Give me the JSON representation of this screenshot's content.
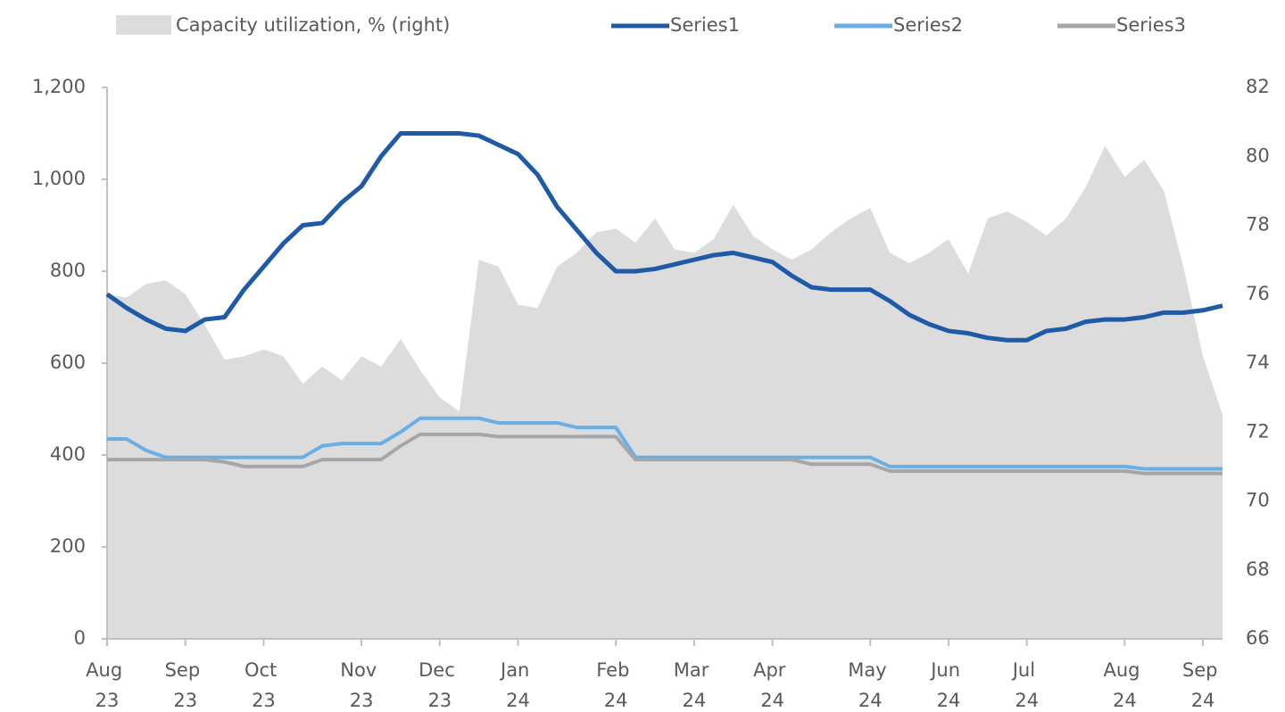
{
  "chart_data": {
    "type": "line",
    "categories": [
      "Aug 23",
      null,
      null,
      null,
      "Sep 23",
      null,
      null,
      null,
      "Oct 23",
      null,
      null,
      null,
      null,
      "Nov 23",
      null,
      null,
      null,
      "Dec 23",
      null,
      null,
      null,
      "Jan 24",
      null,
      null,
      null,
      null,
      "Feb 24",
      null,
      null,
      null,
      "Mar 24",
      null,
      null,
      null,
      "Apr 24",
      null,
      null,
      null,
      null,
      "May 24",
      null,
      null,
      null,
      "Jun 24",
      null,
      null,
      null,
      "Jul 24",
      null,
      null,
      null,
      null,
      "Aug 24",
      null,
      null,
      null,
      "Sep 24",
      null
    ],
    "series": [
      {
        "name": "Capacity utilization, % (right)",
        "type": "area",
        "axis": "y2",
        "color": "#dcdcdc",
        "values": [
          76.0,
          75.9,
          76.3,
          76.4,
          76.0,
          75.1,
          74.1,
          74.2,
          74.4,
          74.2,
          73.4,
          73.9,
          73.5,
          74.2,
          73.9,
          74.7,
          73.8,
          73.0,
          72.6,
          77.0,
          76.8,
          75.7,
          75.6,
          76.8,
          77.2,
          77.8,
          77.9,
          77.5,
          78.2,
          77.3,
          77.2,
          77.6,
          78.6,
          77.7,
          77.3,
          77.0,
          77.3,
          77.8,
          78.2,
          78.5,
          77.2,
          76.9,
          77.2,
          77.6,
          76.6,
          78.2,
          78.4,
          78.1,
          77.7,
          78.2,
          79.1,
          80.3,
          79.4,
          79.9,
          79.0,
          76.8,
          74.2,
          72.5
        ]
      },
      {
        "name": "Series1",
        "color": "#1f5aa6",
        "values": [
          750,
          720,
          695,
          675,
          670,
          695,
          700,
          760,
          810,
          860,
          900,
          905,
          950,
          985,
          1050,
          1100,
          1100,
          1100,
          1100,
          1095,
          1075,
          1055,
          1010,
          940,
          890,
          840,
          800,
          800,
          805,
          815,
          825,
          835,
          840,
          830,
          820,
          790,
          765,
          760,
          760,
          760,
          735,
          705,
          685,
          670,
          665,
          655,
          650,
          650,
          670,
          675,
          690,
          695,
          695,
          700,
          710,
          710,
          715,
          725
        ]
      },
      {
        "name": "Series2",
        "color": "#6aaee6",
        "values": [
          435,
          435,
          410,
          395,
          395,
          395,
          395,
          395,
          395,
          395,
          395,
          420,
          425,
          425,
          425,
          450,
          480,
          480,
          480,
          480,
          470,
          470,
          470,
          470,
          460,
          460,
          460,
          395,
          395,
          395,
          395,
          395,
          395,
          395,
          395,
          395,
          395,
          395,
          395,
          395,
          375,
          375,
          375,
          375,
          375,
          375,
          375,
          375,
          375,
          375,
          375,
          375,
          375,
          370,
          370,
          370,
          370,
          370
        ]
      },
      {
        "name": "Series3",
        "color": "#a6a6a6",
        "values": [
          390,
          390,
          390,
          390,
          390,
          390,
          385,
          375,
          375,
          375,
          375,
          390,
          390,
          390,
          390,
          420,
          445,
          445,
          445,
          445,
          440,
          440,
          440,
          440,
          440,
          440,
          440,
          390,
          390,
          390,
          390,
          390,
          390,
          390,
          390,
          390,
          380,
          380,
          380,
          380,
          365,
          365,
          365,
          365,
          365,
          365,
          365,
          365,
          365,
          365,
          365,
          365,
          365,
          360,
          360,
          360,
          360,
          360
        ]
      }
    ],
    "ylim": [
      0,
      1200
    ],
    "yticks": [
      0,
      200,
      400,
      600,
      800,
      {
        "value": 1000,
        "label": "1,000"
      },
      {
        "value": 1200,
        "label": "1,200"
      }
    ],
    "y2lim": [
      66,
      82
    ],
    "y2ticks": [
      66,
      68,
      70,
      72,
      74,
      76,
      78,
      80,
      82
    ],
    "legend": "top"
  }
}
